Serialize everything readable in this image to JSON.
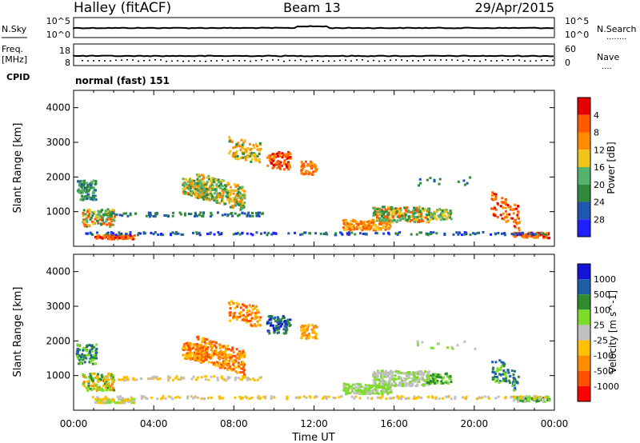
{
  "header": {
    "title_left": "Halley (fitACF)",
    "title_center": "Beam 13",
    "title_right": "29/Apr/2015"
  },
  "strip_nsky": {
    "left_label": "N.Sky",
    "left_ticks": [
      "10^5",
      "10^0"
    ],
    "right_ticks": [
      "10^5",
      "10^0"
    ],
    "right_label": "N.Search",
    "right_legend": "........"
  },
  "strip_freq": {
    "left_label_top": "Freq.",
    "left_label_unit": "[MHz]",
    "left_ticks": [
      "18",
      "8"
    ],
    "right_ticks": [
      "60",
      "0"
    ],
    "right_label": "Nave",
    "right_legend": "....",
    "cpid_label": "CPID",
    "cpid_text": "normal (fast) 151"
  },
  "x_axis": {
    "ticks": [
      "00:00",
      "04:00",
      "08:00",
      "12:00",
      "16:00",
      "20:00",
      "00:00"
    ],
    "label": "Time UT"
  },
  "colors": {
    "power": [
      "#2020ff",
      "#1e56b0",
      "#2f8a3e",
      "#55b36b",
      "#f0c419",
      "#ff8c00",
      "#ff5a00",
      "#e60000"
    ],
    "velocity": [
      "#ff0000",
      "#ff5000",
      "#ff8c00",
      "#ffc000",
      "#c0c0c0",
      "#7ddc2a",
      "#2e8b2e",
      "#1e5fa8",
      "#1414d8"
    ]
  },
  "chart_data": [
    {
      "type": "heatmap",
      "name": "power-panel",
      "ylabel": "Slant Range [km]",
      "yticks": [
        "1000",
        "2000",
        "3000",
        "4000"
      ],
      "colorbar_label": "Power [dB]",
      "colorbar_ticks": [
        "4",
        "8",
        "12",
        "16",
        "20",
        "24",
        "28"
      ],
      "range_y": [
        0,
        4500
      ],
      "range_x": [
        0,
        24
      ]
    },
    {
      "type": "heatmap",
      "name": "velocity-panel",
      "ylabel": "Slant Range [km]",
      "yticks": [
        "1000",
        "2000",
        "3000",
        "4000"
      ],
      "colorbar_label": "Velocity [m s^-1]",
      "colorbar_ticks": [
        "1000",
        "500",
        "100",
        "25",
        "-25",
        "-100",
        "-500",
        "-1000"
      ],
      "range_y": [
        0,
        4500
      ],
      "range_x": [
        0,
        24
      ]
    }
  ]
}
